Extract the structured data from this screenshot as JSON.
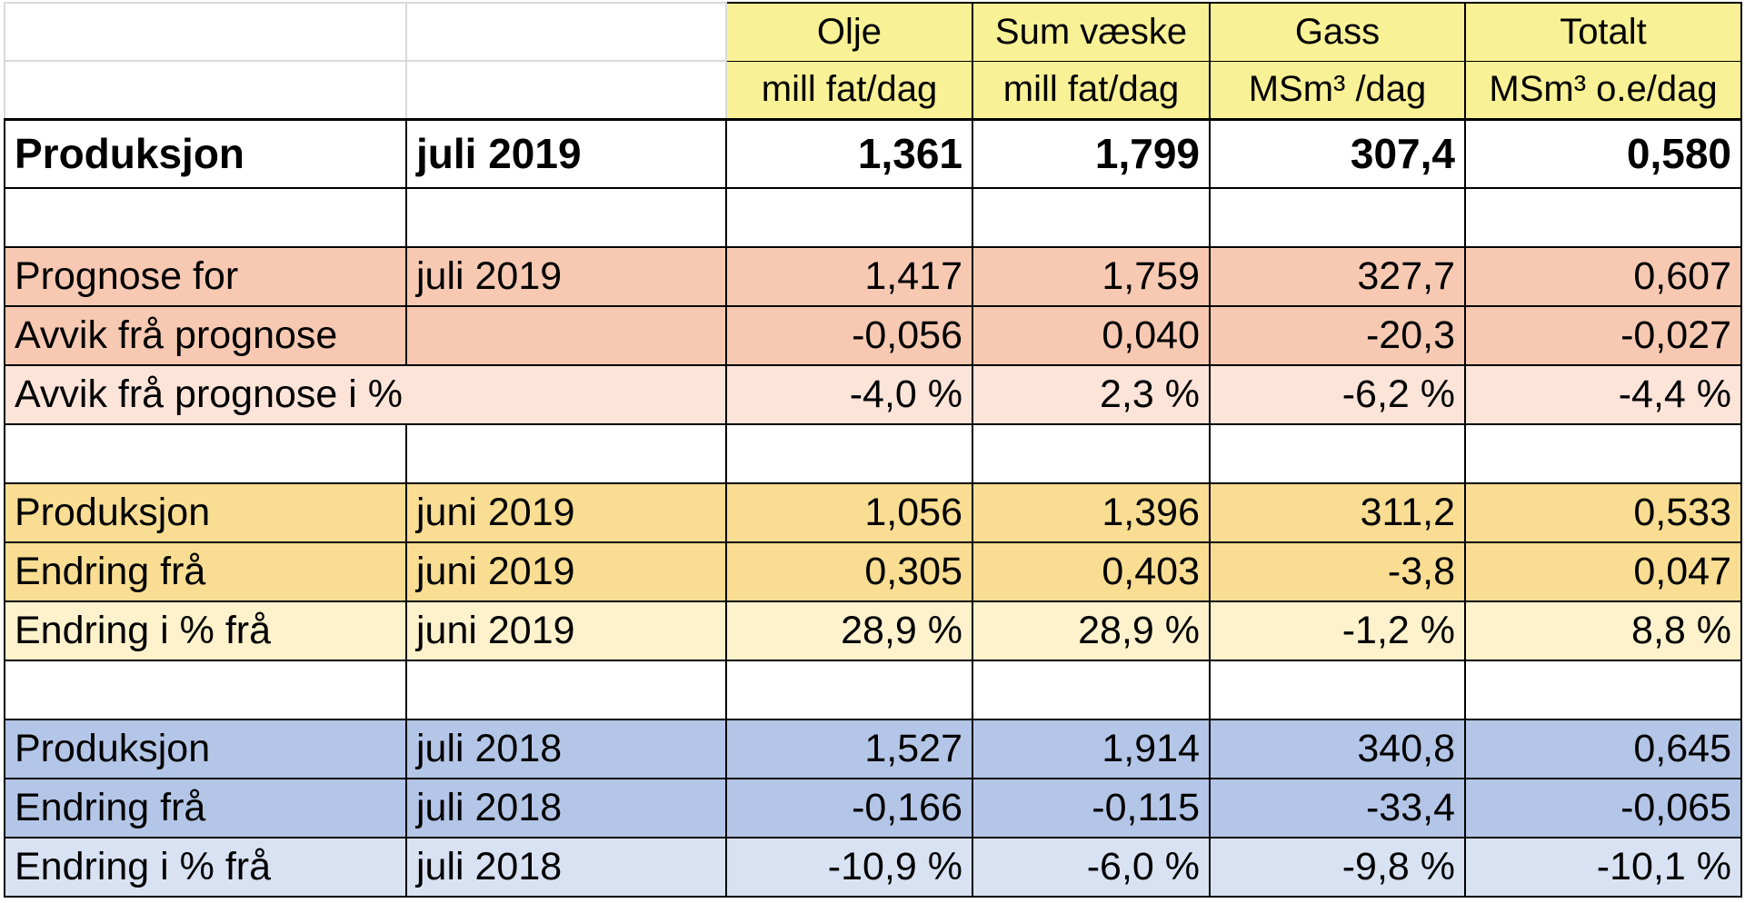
{
  "columns": [
    {
      "name": "Olje",
      "unit": "mill fat/dag"
    },
    {
      "name": "Sum væske",
      "unit": "mill fat/dag"
    },
    {
      "name": "Gass",
      "unit": "MSm³ /dag"
    },
    {
      "name": "Totalt",
      "unit": "MSm³ o.e/dag"
    }
  ],
  "rows": {
    "produksjon": {
      "label": "Produksjon",
      "period": "juli 2019",
      "values": [
        "1,361",
        "1,799",
        "307,4",
        "0,580"
      ]
    },
    "prognose": {
      "label": "Prognose for",
      "period": "juli 2019",
      "values": [
        "1,417",
        "1,759",
        "327,7",
        "0,607"
      ]
    },
    "avvik": {
      "label": "Avvik frå prognose",
      "period": "",
      "values": [
        "-0,056",
        "0,040",
        "-20,3",
        "-0,027"
      ]
    },
    "avvik_pct": {
      "label": "Avvik frå prognose i %",
      "values": [
        "-4,0 %",
        "2,3 %",
        "-6,2 %",
        "-4,4 %"
      ]
    },
    "prod_juni": {
      "label": "Produksjon",
      "period": "juni 2019",
      "values": [
        "1,056",
        "1,396",
        "311,2",
        "0,533"
      ]
    },
    "endring_juni": {
      "label": "Endring frå",
      "period": "juni 2019",
      "values": [
        "0,305",
        "0,403",
        "-3,8",
        "0,047"
      ]
    },
    "endring_pct_juni": {
      "label": "Endring i % frå",
      "period": "juni 2019",
      "values": [
        "28,9 %",
        "28,9 %",
        "-1,2 %",
        "8,8 %"
      ]
    },
    "prod_2018": {
      "label": "Produksjon",
      "period": "juli 2018",
      "values": [
        "1,527",
        "1,914",
        "340,8",
        "0,645"
      ]
    },
    "endring_2018": {
      "label": "Endring frå",
      "period": "juli 2018",
      "values": [
        "-0,166",
        "-0,115",
        "-33,4",
        "-0,065"
      ]
    },
    "endring_pct_2018": {
      "label": "Endring i % frå",
      "period": "juli 2018",
      "values": [
        "-10,9 %",
        "-6,0 %",
        "-9,8 %",
        "-10,1 %"
      ]
    }
  }
}
